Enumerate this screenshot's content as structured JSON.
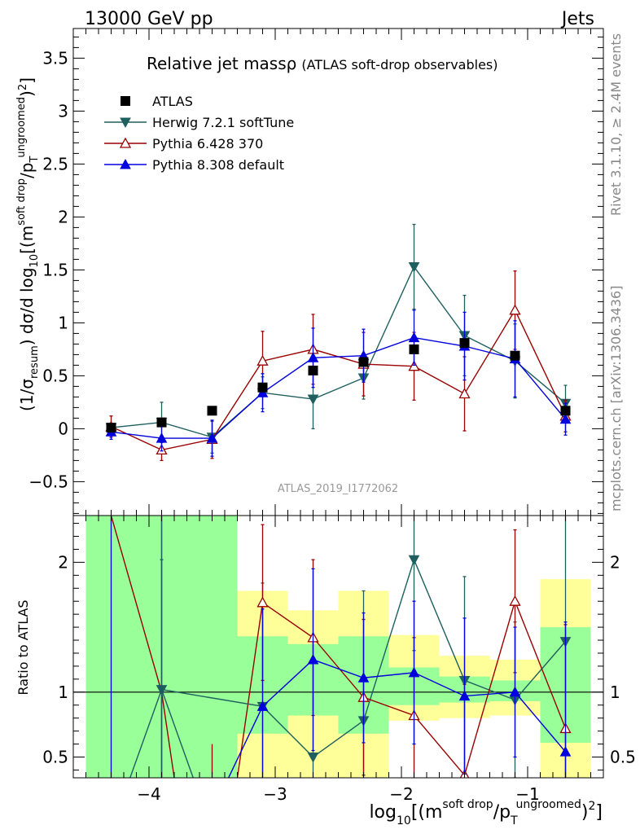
{
  "header": {
    "left": "13000 GeV pp",
    "right": "Jets"
  },
  "side_labels": {
    "rivet": "Rivet 3.1.10, ≥ 2.4M events",
    "mcplots": "mcplots.cern.ch [arXiv:1306.3436]"
  },
  "colors": {
    "atlas": "#000000",
    "herwig": "#1f5f5f",
    "pythia6": "#990000",
    "pythia8": "#0000dd",
    "band_inner": "#99ff99",
    "band_outer": "#ffff99"
  },
  "chart_data": [
    {
      "type": "line",
      "panel": "main",
      "title": "Relative jet massρ",
      "subtitle": "(ATLAS soft-drop observables)",
      "analysis_label": "ATLAS_2019_I1772062",
      "ylabel": "(1/σresum) dσ/d log10[(m soft drop/pT ungroomed)2]",
      "ylim": [
        -0.82,
        3.78
      ],
      "yticks": [
        -0.5,
        0,
        0.5,
        1,
        1.5,
        2,
        2.5,
        3,
        3.5
      ],
      "ytick_labels": [
        "−0.5",
        "0",
        "0.5",
        "1",
        "1.5",
        "2",
        "2.5",
        "3",
        "3.5"
      ],
      "x": [
        -4.3,
        -3.9,
        -3.5,
        -3.1,
        -2.7,
        -2.3,
        -1.9,
        -1.5,
        -1.1,
        -0.7
      ],
      "legend": [
        "ATLAS",
        "Herwig 7.2.1 softTune",
        "Pythia 6.428 370",
        "Pythia 8.308 default"
      ],
      "legend_position": "top-left",
      "series": [
        {
          "name": "ATLAS",
          "marker": "square",
          "values": [
            0.01,
            0.06,
            0.17,
            0.39,
            0.55,
            0.63,
            0.75,
            0.81,
            0.69,
            0.17
          ],
          "errors": [
            0.01,
            0.01,
            0.01,
            0.02,
            0.02,
            0.02,
            0.02,
            0.02,
            0.02,
            0.02
          ]
        },
        {
          "name": "Herwig 7.2.1 softTune",
          "marker": "triangle-down",
          "values": [
            0.01,
            0.06,
            -0.08,
            0.34,
            0.28,
            0.48,
            1.53,
            0.88,
            0.64,
            0.24
          ],
          "errors": [
            0.03,
            0.19,
            0.15,
            0.15,
            0.28,
            0.2,
            0.4,
            0.38,
            0.35,
            0.17
          ]
        },
        {
          "name": "Pythia 6.428 370",
          "marker": "triangle-up-open",
          "values": [
            0.02,
            -0.2,
            -0.1,
            0.64,
            0.75,
            0.61,
            0.59,
            0.33,
            1.12,
            0.12
          ],
          "errors": [
            0.1,
            0.1,
            0.18,
            0.28,
            0.33,
            0.3,
            0.32,
            0.35,
            0.37,
            0.15
          ]
        },
        {
          "name": "Pythia 8.308 default",
          "marker": "triangle-up",
          "values": [
            -0.03,
            -0.09,
            -0.09,
            0.34,
            0.67,
            0.69,
            0.86,
            0.78,
            0.66,
            0.09
          ],
          "errors": [
            0.07,
            0.12,
            0.17,
            0.18,
            0.28,
            0.25,
            0.26,
            0.32,
            0.36,
            0.15
          ]
        }
      ]
    },
    {
      "type": "line",
      "panel": "ratio",
      "ylabel": "Ratio to ATLAS",
      "xlabel": "log10[(m soft drop/pT ungroomed)2]",
      "xlim": [
        -4.6,
        -0.4
      ],
      "xticks": [
        -4,
        -3,
        -2,
        -1
      ],
      "xtick_labels": [
        "−4",
        "−3",
        "−2",
        "−1"
      ],
      "ylim": [
        0.34,
        2.36
      ],
      "yticks": [
        0.5,
        1,
        2
      ],
      "ytick_labels": [
        "0.5",
        "1",
        "2"
      ],
      "bins": [
        [
          -4.5,
          -4.1
        ],
        [
          -4.1,
          -3.7
        ],
        [
          -3.7,
          -3.3
        ],
        [
          -3.3,
          -2.9
        ],
        [
          -2.9,
          -2.5
        ],
        [
          -2.5,
          -2.1
        ],
        [
          -2.1,
          -1.7
        ],
        [
          -1.7,
          -1.3
        ],
        [
          -1.3,
          -0.9
        ],
        [
          -0.9,
          -0.5
        ]
      ],
      "band_inner": [
        [
          0.34,
          2.36
        ],
        [
          0.34,
          2.36
        ],
        [
          0.34,
          2.36
        ],
        [
          0.68,
          1.43
        ],
        [
          0.82,
          1.37
        ],
        [
          0.68,
          1.43
        ],
        [
          0.9,
          1.19
        ],
        [
          0.92,
          1.12
        ],
        [
          0.93,
          1.09
        ],
        [
          0.61,
          1.5
        ]
      ],
      "band_outer": [
        [
          0.34,
          2.36
        ],
        [
          0.34,
          2.36
        ],
        [
          0.34,
          2.36
        ],
        [
          0.34,
          1.78
        ],
        [
          0.34,
          1.63
        ],
        [
          0.34,
          1.78
        ],
        [
          0.78,
          1.44
        ],
        [
          0.8,
          1.28
        ],
        [
          0.82,
          1.25
        ],
        [
          0.34,
          1.87
        ]
      ],
      "series": [
        {
          "name": "Herwig 7.2.1 softTune",
          "values": [
            null,
            1.02,
            null,
            0.89,
            0.5,
            0.78,
            2.02,
            1.09,
            0.94,
            1.39
          ],
          "errors": [
            null,
            1.0,
            null,
            0.95,
            0.9,
            1.0,
            0.7,
            0.8,
            0.6,
            1.2
          ]
        },
        {
          "name": "Pythia 6.428 370",
          "values": [
            null,
            null,
            null,
            1.69,
            1.42,
            0.96,
            0.82,
            0.36,
            1.7,
            0.72
          ],
          "errors": [
            null,
            null,
            null,
            0.6,
            0.6,
            0.6,
            0.6,
            0.7,
            0.55,
            0.8
          ]
        },
        {
          "name": "Pythia 8.308 default",
          "values": [
            null,
            null,
            null,
            0.89,
            1.25,
            1.11,
            1.15,
            0.97,
            1.0,
            0.54
          ],
          "errors": [
            null,
            null,
            null,
            0.75,
            0.7,
            0.5,
            0.55,
            0.6,
            0.5,
            1.0
          ]
        }
      ],
      "segments_offscale": [
        {
          "name": "Pythia 6.428 370",
          "from": [
            -4.3,
            2.36
          ],
          "to": [
            -3.9,
            1.0
          ]
        },
        {
          "name": "Pythia 6.428 370",
          "from": [
            -3.9,
            1.0
          ],
          "to": [
            -3.8,
            0.34
          ]
        },
        {
          "name": "Pythia 6.428 370",
          "from": [
            -3.3,
            0.34
          ],
          "to": [
            -3.1,
            1.69
          ]
        },
        {
          "name": "Herwig 7.2.1 softTune",
          "from": [
            -4.15,
            0.34
          ],
          "to": [
            -3.9,
            1.02
          ]
        },
        {
          "name": "Herwig 7.2.1 softTune",
          "from": [
            -3.9,
            1.02
          ],
          "to": [
            -3.65,
            0.34
          ]
        },
        {
          "name": "Pythia 8.308 default",
          "from": [
            -3.37,
            0.34
          ],
          "to": [
            -3.1,
            0.89
          ]
        }
      ]
    }
  ]
}
